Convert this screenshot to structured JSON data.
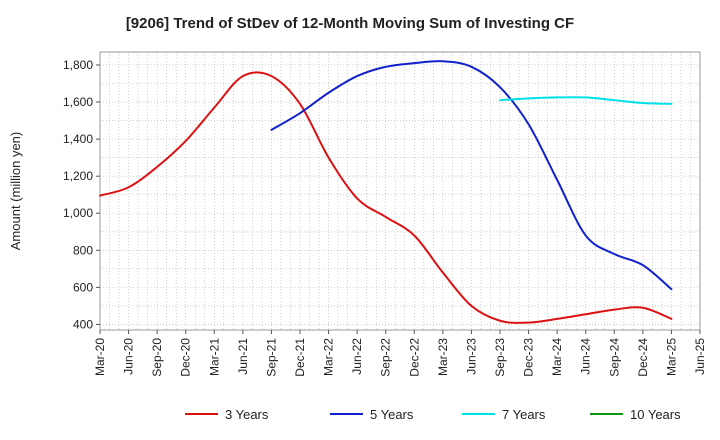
{
  "chart_data": {
    "type": "line",
    "title": "[9206]  Trend of StDev of 12-Month Moving Sum of Investing CF",
    "ylabel": "Amount (million yen)",
    "xlabel": "",
    "ylim": [
      370,
      1870
    ],
    "yticks": [
      400,
      600,
      800,
      1000,
      1200,
      1400,
      1600,
      1800
    ],
    "ytick_labels": [
      "400",
      "600",
      "800",
      "1,000",
      "1,200",
      "1,400",
      "1,600",
      "1,800"
    ],
    "xticks": [
      "Mar-20",
      "Jun-20",
      "Sep-20",
      "Dec-20",
      "Mar-21",
      "Jun-21",
      "Sep-21",
      "Dec-21",
      "Mar-22",
      "Jun-22",
      "Sep-22",
      "Dec-22",
      "Mar-23",
      "Jun-23",
      "Sep-23",
      "Dec-23",
      "Mar-24",
      "Jun-24",
      "Sep-24",
      "Dec-24",
      "Mar-25",
      "Jun-25"
    ],
    "grid": true,
    "legend_position": "bottom",
    "series": [
      {
        "name": "3 Years",
        "color": "#dd1111",
        "x": [
          "Mar-20",
          "Jun-20",
          "Sep-20",
          "Dec-20",
          "Mar-21",
          "Jun-21",
          "Sep-21",
          "Dec-21",
          "Mar-22",
          "Jun-22",
          "Sep-22",
          "Dec-22",
          "Mar-23",
          "Jun-23",
          "Sep-23",
          "Dec-23",
          "Mar-24",
          "Jun-24",
          "Sep-24",
          "Dec-24",
          "Mar-25"
        ],
        "values": [
          1095,
          1140,
          1250,
          1390,
          1570,
          1740,
          1740,
          1590,
          1300,
          1080,
          980,
          880,
          680,
          500,
          420,
          410,
          430,
          455,
          480,
          490,
          430
        ]
      },
      {
        "name": "5 Years",
        "color": "#1122cc",
        "x": [
          "Sep-21",
          "Dec-21",
          "Mar-22",
          "Jun-22",
          "Sep-22",
          "Dec-22",
          "Mar-23",
          "Jun-23",
          "Sep-23",
          "Dec-23",
          "Mar-24",
          "Jun-24",
          "Sep-24",
          "Dec-24",
          "Mar-25"
        ],
        "values": [
          1450,
          1540,
          1650,
          1740,
          1790,
          1810,
          1820,
          1790,
          1680,
          1480,
          1180,
          880,
          780,
          720,
          590
        ]
      },
      {
        "name": "7 Years",
        "color": "#00e0e8",
        "x": [
          "Sep-23",
          "Dec-23",
          "Mar-24",
          "Jun-24",
          "Sep-24",
          "Dec-24",
          "Mar-25"
        ],
        "values": [
          1610,
          1620,
          1625,
          1625,
          1610,
          1595,
          1590
        ]
      },
      {
        "name": "10 Years",
        "color": "#119911",
        "x": [],
        "values": []
      }
    ]
  }
}
